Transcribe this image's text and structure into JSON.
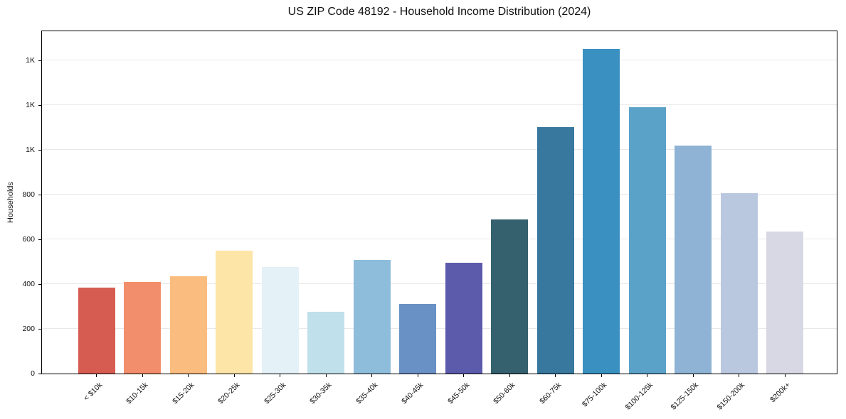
{
  "chart_data": {
    "type": "bar",
    "title": "US ZIP Code 48192 - Household Income Distribution (2024)",
    "xlabel": "",
    "ylabel": "Households",
    "categories": [
      "< $10k",
      "$10-15k",
      "$15-20k",
      "$20-25k",
      "$25-30k",
      "$30-35k",
      "$35-40k",
      "$40-45k",
      "$45-50k",
      "$50-60k",
      "$60-75k",
      "$75-100k",
      "$100-125k",
      "$125-150k",
      "$150-200k",
      "$200k+"
    ],
    "values": [
      385,
      410,
      435,
      550,
      475,
      275,
      507,
      310,
      495,
      690,
      1100,
      1450,
      1190,
      1020,
      805,
      635
    ],
    "bar_colors": [
      "#d65c52",
      "#f28e6c",
      "#fabd7f",
      "#fce5a6",
      "#e4f1f6",
      "#c0e0ec",
      "#8ebcdb",
      "#6991c5",
      "#5c5bab",
      "#35606e",
      "#38789f",
      "#3990c1",
      "#5aa2c8",
      "#8eb3d4",
      "#bac8df",
      "#d8d8e5"
    ],
    "ylim": [
      0,
      1530
    ],
    "yticks": [
      {
        "value": 0,
        "label": "0"
      },
      {
        "value": 200,
        "label": "200"
      },
      {
        "value": 400,
        "label": "400"
      },
      {
        "value": 600,
        "label": "600"
      },
      {
        "value": 800,
        "label": "800"
      },
      {
        "value": 1000,
        "label": "1K"
      },
      {
        "value": 1200,
        "label": "1K"
      },
      {
        "value": 1400,
        "label": "1K"
      }
    ],
    "grid": "horizontal",
    "legend": "none",
    "x_tick_rotation_deg": 45,
    "axis_color": "#000000",
    "grid_color": "#e8e8e8"
  }
}
